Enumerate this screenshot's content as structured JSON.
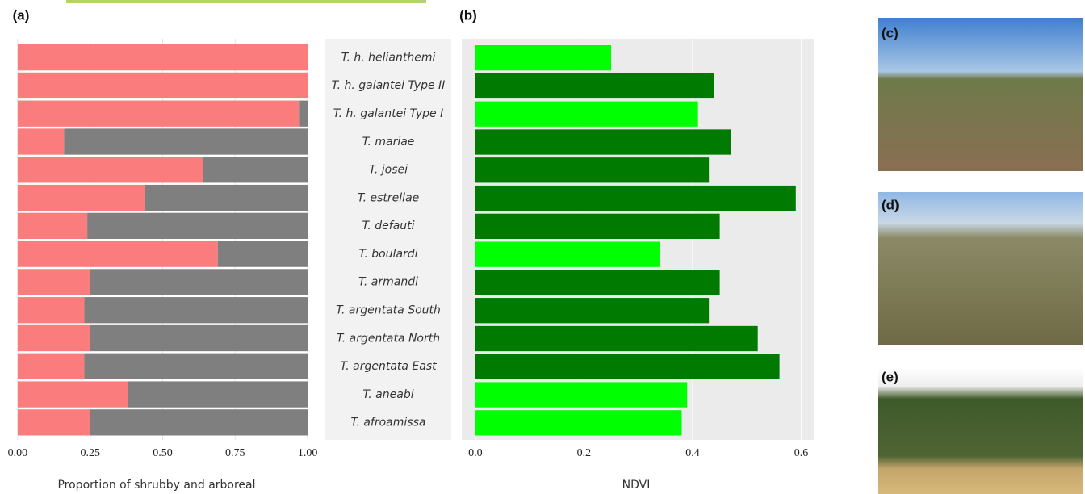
{
  "chart_data": [
    {
      "type": "bar",
      "orientation": "horizontal",
      "stacked": true,
      "panel_label": "(a)",
      "x_label": "Proportion of shrubby and arboreal",
      "categories": [
        "T. h. helianthemi",
        "T. h. galantei Type II",
        "T. h. galantei Type I",
        "T. mariae",
        "T. josei",
        "T. estrellae",
        "T. defauti",
        "T. boulardi",
        "T. armandi",
        "T. argentata South",
        "T. argentata North",
        "T. argentata East",
        "T. aneabi",
        "T. afroamissa"
      ],
      "series": [
        {
          "color": "#fa7c7c",
          "values": [
            1.0,
            1.0,
            0.97,
            0.16,
            0.64,
            0.44,
            0.24,
            0.69,
            0.25,
            0.23,
            0.25,
            0.23,
            0.38,
            0.25
          ]
        },
        {
          "color": "#7f7f7f",
          "values": [
            0.0,
            0.0,
            0.03,
            0.84,
            0.36,
            0.56,
            0.76,
            0.31,
            0.75,
            0.77,
            0.75,
            0.77,
            0.62,
            0.75
          ]
        }
      ],
      "xlim": [
        -0.022,
        1.022
      ],
      "xticks": [
        {
          "value": 0,
          "label": "0.00"
        },
        {
          "value": 0.25,
          "label": "0.25"
        },
        {
          "value": 0.5,
          "label": "0.50"
        },
        {
          "value": 0.75,
          "label": "0.75"
        },
        {
          "value": 1,
          "label": "1.00"
        }
      ],
      "grid": true,
      "panel_color": "#ffffff"
    },
    {
      "type": "bar",
      "orientation": "horizontal",
      "stacked": false,
      "panel_label": "(b)",
      "x_label": "NDVI",
      "values": [
        0.25,
        0.44,
        0.41,
        0.47,
        0.43,
        0.59,
        0.45,
        0.34,
        0.45,
        0.43,
        0.52,
        0.56,
        0.39,
        0.38
      ],
      "colors": [
        "#00ff00",
        "#007a00",
        "#00ff00",
        "#007a00",
        "#007a00",
        "#007a00",
        "#007a00",
        "#00ff00",
        "#007a00",
        "#007a00",
        "#007a00",
        "#007a00",
        "#00ff00",
        "#00ff00"
      ],
      "xlim": [
        -0.025,
        0.623
      ],
      "xticks": [
        {
          "value": 0,
          "label": "0.0"
        },
        0.2,
        0.4,
        0.6
      ],
      "grid": true,
      "panel_color": "#ebebeb"
    }
  ],
  "photos": {
    "labels": [
      "(c)",
      "(d)",
      "(e)"
    ]
  }
}
